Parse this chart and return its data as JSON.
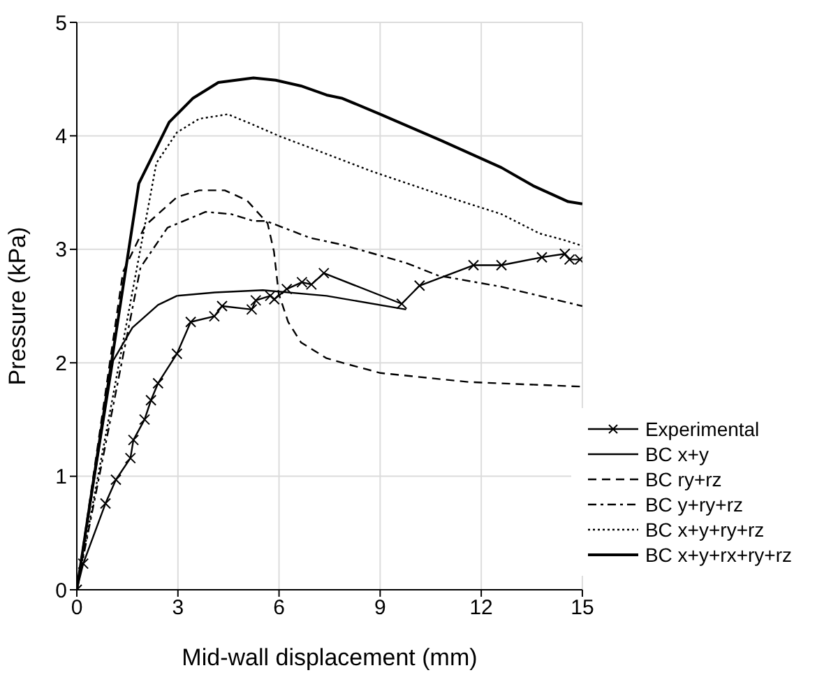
{
  "chart_data": {
    "type": "line",
    "xlabel": "Mid-wall displacement (mm)",
    "ylabel": "Pressure (kPa)",
    "xlim": [
      0,
      15
    ],
    "xticks": [
      0,
      3,
      6,
      9,
      12,
      15
    ],
    "ylim": [
      0,
      5
    ],
    "yticks": [
      0,
      1,
      2,
      3,
      4,
      5
    ],
    "grid": true,
    "legend": "bottom right",
    "series": [
      {
        "name": "Experimental",
        "color": "#000000",
        "marker": "cross",
        "line_style": "solid",
        "x": [
          0,
          0.19,
          0.85,
          1.16,
          1.59,
          1.68,
          2.01,
          2.2,
          2.41,
          2.97,
          3.38,
          4.08,
          4.31,
          5.19,
          5.31,
          5.74,
          5.86,
          6.23,
          6.68,
          6.96,
          7.33,
          9.64,
          10.17,
          11.77,
          12.6,
          13.8,
          14.48,
          14.62,
          14.93
        ],
        "values": [
          0,
          0.23,
          0.76,
          0.97,
          1.16,
          1.32,
          1.5,
          1.67,
          1.82,
          2.08,
          2.36,
          2.41,
          2.5,
          2.47,
          2.55,
          2.59,
          2.56,
          2.65,
          2.71,
          2.69,
          2.79,
          2.52,
          2.68,
          2.86,
          2.86,
          2.93,
          2.96,
          2.91,
          2.91
        ]
      },
      {
        "name": "BC x+y",
        "color": "#000000",
        "marker": "none",
        "line_style": "solid",
        "x": [
          0,
          1.08,
          1.65,
          2.41,
          2.97,
          4.1,
          5.52,
          7.41,
          9.77
        ],
        "values": [
          0,
          2.02,
          2.31,
          2.51,
          2.59,
          2.62,
          2.64,
          2.59,
          2.47
        ]
      },
      {
        "name": "BC ry+rz",
        "color": "#000000",
        "marker": "none",
        "line_style": "dashed",
        "x": [
          0,
          1.37,
          2.03,
          2.97,
          3.63,
          4.39,
          5.05,
          5.66,
          5.85,
          5.99,
          6.27,
          6.65,
          7.41,
          7.88,
          9.01,
          11.65,
          15
        ],
        "values": [
          0,
          2.8,
          3.21,
          3.46,
          3.52,
          3.52,
          3.43,
          3.23,
          2.98,
          2.61,
          2.36,
          2.18,
          2.04,
          2.0,
          1.91,
          1.83,
          1.79
        ]
      },
      {
        "name": "BC y+ry+rz",
        "color": "#000000",
        "marker": "none",
        "line_style": "dashdot",
        "x": [
          0,
          1.89,
          2.69,
          3.82,
          4.58,
          5.24,
          5.61,
          6.93,
          7.88,
          9.77,
          10.71,
          12.6,
          15
        ],
        "values": [
          0,
          2.84,
          3.19,
          3.33,
          3.31,
          3.25,
          3.25,
          3.1,
          3.04,
          2.88,
          2.77,
          2.67,
          2.5
        ]
      },
      {
        "name": "BC x+y+ry+rz",
        "color": "#000000",
        "marker": "none",
        "line_style": "dotted",
        "x": [
          0,
          2.03,
          2.36,
          2.97,
          3.63,
          4.48,
          5.14,
          5.99,
          7.41,
          8.82,
          10.71,
          12.6,
          13.73,
          14.48,
          15
        ],
        "values": [
          0,
          3.23,
          3.76,
          4.03,
          4.15,
          4.19,
          4.11,
          4.0,
          3.84,
          3.68,
          3.49,
          3.31,
          3.14,
          3.08,
          3.03
        ]
      },
      {
        "name": "BC x+y+rx+ry+rz",
        "color": "#000000",
        "marker": "none",
        "line_style": "solid",
        "x": [
          0,
          1.84,
          2.74,
          3.44,
          4.2,
          5.24,
          5.9,
          6.65,
          7.41,
          7.88,
          9.01,
          10.8,
          12.6,
          13.54,
          14.58,
          15
        ],
        "values": [
          0,
          3.58,
          4.12,
          4.33,
          4.47,
          4.51,
          4.49,
          4.44,
          4.36,
          4.33,
          4.19,
          3.96,
          3.72,
          3.56,
          3.42,
          3.4
        ]
      }
    ]
  }
}
